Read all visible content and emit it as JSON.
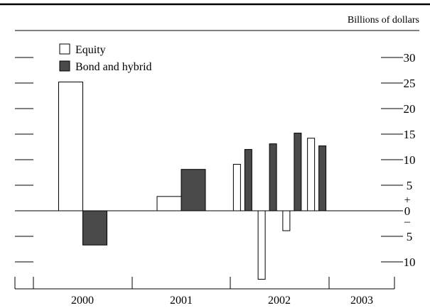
{
  "chart_data": {
    "type": "bar",
    "unit_label": "Billions of dollars",
    "title": "",
    "xlabel": "",
    "ylabel": "",
    "ylim": [
      -13.5,
      31
    ],
    "yticks": [
      30,
      25,
      20,
      15,
      10,
      5,
      0,
      -5,
      -10
    ],
    "ytick_labels": [
      "30",
      "25",
      "20",
      "15",
      "10",
      "5",
      "0",
      "5",
      "10"
    ],
    "sign_labels": {
      "plus": "+",
      "minus": "–"
    },
    "x_years": [
      "2000",
      "2001",
      "2002",
      "2003"
    ],
    "legend": {
      "placement": "top-left",
      "entries": [
        {
          "name": "Equity",
          "fill": "#ffffff"
        },
        {
          "name": "Bond and hybrid",
          "fill": "#4a4a4a"
        }
      ]
    },
    "series": [
      {
        "name": "Equity",
        "color": "#ffffff",
        "points": [
          {
            "x": 2000.5,
            "value": 25.2
          },
          {
            "x": 2001.5,
            "value": 2.8
          },
          {
            "x": 2002.125,
            "value": 9.1
          },
          {
            "x": 2002.375,
            "value": -13.4
          },
          {
            "x": 2002.625,
            "value": -3.9
          },
          {
            "x": 2002.875,
            "value": 14.2
          }
        ]
      },
      {
        "name": "Bond and hybrid",
        "color": "#4a4a4a",
        "points": [
          {
            "x": 2000.5,
            "value": -6.7
          },
          {
            "x": 2001.5,
            "value": 8.1
          },
          {
            "x": 2002.125,
            "value": 12.0
          },
          {
            "x": 2002.375,
            "value": 13.1
          },
          {
            "x": 2002.625,
            "value": 15.2
          },
          {
            "x": 2002.875,
            "value": 12.7
          }
        ]
      }
    ]
  }
}
